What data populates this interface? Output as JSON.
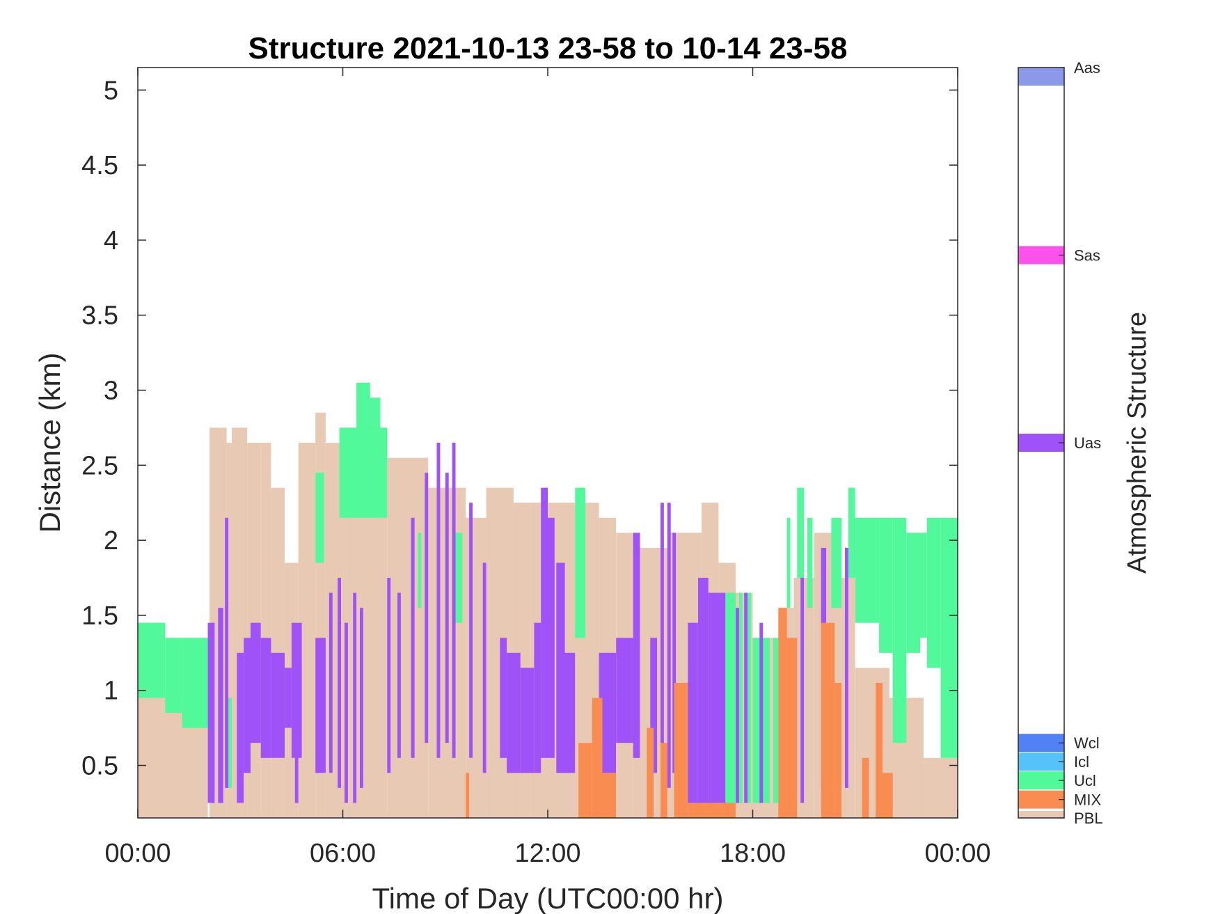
{
  "chart_data": {
    "type": "heatmap",
    "title": "Structure 2021-10-13 23-58 to 10-14 23-58",
    "xlabel": "Time of Day (UTC00:00 hr)",
    "ylabel": "Distance (km)",
    "xlim": [
      0,
      24
    ],
    "ylim": [
      0.15,
      5.15
    ],
    "xticks": [
      0,
      6,
      12,
      18,
      24
    ],
    "xtick_labels": [
      "00:00",
      "06:00",
      "12:00",
      "18:00",
      "00:00"
    ],
    "yticks": [
      0.5,
      1,
      1.5,
      2,
      2.5,
      3,
      3.5,
      4,
      4.5,
      5
    ],
    "ytick_labels": [
      "0.5",
      "1",
      "1.5",
      "2",
      "2.5",
      "3",
      "3.5",
      "4",
      "4.5",
      "5"
    ],
    "colorbar": {
      "label": "Atmospheric Structure",
      "categories": [
        {
          "name": "PBL",
          "color": "#E8C9B4"
        },
        {
          "name": "MIX",
          "color": "#F98C50"
        },
        {
          "name": "Ucl",
          "color": "#52F99B"
        },
        {
          "name": "Icl",
          "color": "#55C3F9"
        },
        {
          "name": "Wcl",
          "color": "#5280F5"
        },
        {
          "name": "Uas",
          "color": "#A052F9"
        },
        {
          "name": "Sas",
          "color": "#FA52EB"
        },
        {
          "name": "Aas",
          "color": "#8C99E8"
        }
      ]
    },
    "bands": [
      {
        "class": "PBL",
        "color": "#E8C9B4",
        "spans": [
          [
            0,
            2.05,
            0.15,
            0.95
          ],
          [
            2.1,
            2.6,
            0.15,
            2.75
          ],
          [
            2.6,
            2.75,
            0.15,
            2.65
          ],
          [
            2.75,
            3.2,
            0.15,
            2.75
          ],
          [
            3.2,
            3.6,
            0.15,
            2.65
          ],
          [
            3.6,
            3.9,
            0.15,
            2.65
          ],
          [
            3.9,
            4.3,
            0.15,
            2.35
          ],
          [
            4.3,
            4.7,
            0.15,
            1.85
          ],
          [
            4.7,
            5.2,
            0.15,
            2.65
          ],
          [
            5.2,
            5.5,
            0.15,
            2.85
          ],
          [
            5.5,
            6.1,
            0.15,
            2.65
          ],
          [
            6.1,
            7.3,
            0.15,
            2.75
          ],
          [
            7.3,
            8.5,
            0.15,
            2.55
          ],
          [
            8.5,
            9.6,
            0.15,
            2.35
          ],
          [
            9.6,
            10.2,
            0.15,
            2.15
          ],
          [
            10.2,
            11.0,
            0.15,
            2.35
          ],
          [
            11.0,
            11.5,
            0.15,
            2.25
          ],
          [
            11.5,
            12.5,
            0.15,
            2.25
          ],
          [
            12.5,
            13.5,
            0.15,
            2.25
          ],
          [
            13.5,
            14.0,
            0.15,
            2.15
          ],
          [
            14.0,
            14.5,
            0.15,
            2.05
          ],
          [
            14.5,
            15.5,
            0.15,
            1.95
          ],
          [
            15.5,
            16.5,
            0.15,
            2.05
          ],
          [
            16.5,
            17.0,
            0.15,
            2.25
          ],
          [
            17.0,
            17.5,
            0.15,
            1.85
          ],
          [
            17.5,
            18.0,
            0.15,
            1.65
          ],
          [
            18.0,
            18.8,
            0.15,
            1.35
          ],
          [
            18.8,
            19.2,
            0.15,
            1.55
          ],
          [
            19.2,
            19.8,
            0.15,
            1.75
          ],
          [
            19.8,
            20.6,
            0.15,
            2.05
          ],
          [
            20.6,
            21.0,
            0.15,
            1.75
          ],
          [
            21.0,
            22.0,
            0.15,
            1.15
          ],
          [
            22.0,
            23.0,
            0.15,
            0.95
          ],
          [
            23.0,
            24.0,
            0.15,
            0.55
          ]
        ]
      },
      {
        "class": "Ucl",
        "color": "#52F99B",
        "spans": [
          [
            0,
            0.8,
            0.95,
            1.45
          ],
          [
            0.8,
            1.3,
            0.85,
            1.35
          ],
          [
            1.3,
            2.05,
            0.75,
            1.35
          ],
          [
            2.6,
            2.75,
            0.35,
            0.95
          ],
          [
            5.2,
            5.45,
            1.85,
            2.45
          ],
          [
            5.9,
            7.3,
            2.15,
            2.75
          ],
          [
            6.4,
            6.8,
            2.45,
            3.05
          ],
          [
            6.8,
            7.1,
            2.35,
            2.95
          ],
          [
            8.2,
            8.3,
            1.55,
            2.05
          ],
          [
            9.3,
            9.5,
            1.45,
            2.05
          ],
          [
            12.8,
            13.1,
            1.35,
            2.35
          ],
          [
            17.2,
            17.5,
            0.25,
            1.65
          ],
          [
            17.6,
            17.7,
            0.25,
            1.65
          ],
          [
            17.85,
            17.95,
            0.25,
            1.65
          ],
          [
            18.0,
            18.5,
            0.25,
            1.35
          ],
          [
            18.6,
            18.75,
            0.25,
            1.35
          ],
          [
            19.0,
            19.1,
            1.55,
            2.15
          ],
          [
            19.3,
            19.5,
            1.75,
            2.35
          ],
          [
            19.6,
            19.75,
            1.55,
            2.15
          ],
          [
            20.3,
            20.6,
            1.55,
            2.15
          ],
          [
            20.8,
            21.0,
            1.75,
            2.35
          ],
          [
            21.0,
            21.7,
            1.45,
            2.15
          ],
          [
            21.7,
            22.1,
            1.25,
            2.15
          ],
          [
            22.1,
            22.5,
            0.65,
            2.15
          ],
          [
            22.5,
            22.9,
            1.25,
            2.05
          ],
          [
            22.9,
            23.1,
            1.35,
            2.05
          ],
          [
            23.1,
            23.5,
            1.15,
            2.15
          ],
          [
            23.5,
            24.0,
            0.55,
            2.15
          ]
        ]
      },
      {
        "class": "Uas",
        "color": "#A052F9",
        "spans": [
          [
            2.05,
            2.25,
            0.25,
            1.45
          ],
          [
            2.35,
            2.5,
            0.25,
            1.55
          ],
          [
            2.55,
            2.65,
            0.35,
            2.15
          ],
          [
            2.9,
            3.1,
            0.25,
            1.25
          ],
          [
            3.1,
            3.3,
            0.45,
            1.35
          ],
          [
            3.3,
            3.6,
            0.65,
            1.45
          ],
          [
            3.6,
            3.9,
            0.55,
            1.35
          ],
          [
            3.9,
            4.3,
            0.55,
            1.25
          ],
          [
            4.3,
            4.5,
            0.75,
            1.15
          ],
          [
            4.5,
            4.8,
            0.55,
            1.45
          ],
          [
            4.6,
            4.7,
            0.25,
            1.25
          ],
          [
            5.2,
            5.5,
            0.45,
            1.35
          ],
          [
            5.6,
            5.7,
            0.45,
            1.65
          ],
          [
            5.85,
            5.95,
            0.35,
            1.75
          ],
          [
            6.05,
            6.15,
            0.25,
            1.45
          ],
          [
            6.3,
            6.4,
            0.25,
            1.65
          ],
          [
            6.5,
            6.6,
            0.35,
            1.55
          ],
          [
            7.3,
            7.4,
            0.45,
            1.75
          ],
          [
            7.6,
            7.7,
            0.55,
            1.65
          ],
          [
            8.0,
            8.1,
            0.55,
            2.15
          ],
          [
            8.4,
            8.5,
            0.65,
            2.45
          ],
          [
            8.75,
            8.85,
            0.55,
            2.65
          ],
          [
            9.0,
            9.1,
            0.65,
            2.45
          ],
          [
            9.2,
            9.3,
            0.55,
            2.65
          ],
          [
            9.7,
            9.8,
            0.55,
            2.25
          ],
          [
            10.1,
            10.2,
            0.45,
            1.85
          ],
          [
            10.6,
            10.8,
            0.55,
            1.35
          ],
          [
            10.8,
            11.2,
            0.45,
            1.25
          ],
          [
            11.2,
            11.6,
            0.45,
            1.15
          ],
          [
            11.6,
            11.8,
            0.45,
            1.45
          ],
          [
            11.8,
            12.0,
            0.55,
            2.35
          ],
          [
            12.0,
            12.2,
            0.55,
            2.15
          ],
          [
            12.25,
            12.5,
            0.45,
            1.85
          ],
          [
            12.5,
            12.8,
            0.45,
            1.25
          ],
          [
            13.5,
            14.0,
            0.45,
            1.25
          ],
          [
            14.0,
            14.5,
            0.65,
            1.35
          ],
          [
            14.5,
            14.7,
            0.55,
            2.05
          ],
          [
            15.0,
            15.2,
            0.45,
            1.35
          ],
          [
            15.3,
            15.4,
            0.25,
            2.25
          ],
          [
            15.5,
            15.6,
            0.35,
            2.25
          ],
          [
            15.65,
            15.75,
            0.45,
            2.05
          ],
          [
            16.1,
            16.4,
            0.25,
            1.45
          ],
          [
            16.4,
            16.7,
            0.25,
            1.75
          ],
          [
            16.7,
            17.2,
            0.25,
            1.65
          ],
          [
            17.5,
            17.6,
            0.25,
            1.55
          ],
          [
            17.75,
            17.85,
            0.25,
            1.65
          ],
          [
            18.2,
            18.3,
            0.25,
            1.45
          ],
          [
            19.4,
            19.5,
            0.25,
            1.75
          ],
          [
            20.0,
            20.15,
            0.35,
            1.95
          ],
          [
            20.7,
            20.8,
            0.35,
            1.95
          ]
        ]
      },
      {
        "class": "MIX",
        "color": "#F98C50",
        "spans": [
          [
            9.6,
            9.7,
            0.15,
            0.45
          ],
          [
            12.9,
            13.3,
            0.15,
            0.65
          ],
          [
            13.3,
            13.6,
            0.15,
            0.95
          ],
          [
            13.6,
            14.0,
            0.15,
            0.45
          ],
          [
            14.9,
            15.1,
            0.15,
            0.75
          ],
          [
            15.3,
            15.5,
            0.15,
            0.65
          ],
          [
            15.7,
            16.1,
            0.15,
            1.05
          ],
          [
            16.1,
            17.5,
            0.15,
            0.25
          ],
          [
            18.75,
            19.0,
            0.15,
            1.55
          ],
          [
            19.0,
            19.3,
            0.15,
            1.35
          ],
          [
            20.0,
            20.4,
            0.15,
            1.45
          ],
          [
            20.4,
            20.6,
            0.15,
            1.05
          ],
          [
            21.2,
            21.4,
            0.15,
            0.55
          ],
          [
            21.6,
            21.8,
            0.15,
            1.05
          ],
          [
            21.8,
            22.1,
            0.15,
            0.45
          ]
        ]
      }
    ]
  }
}
